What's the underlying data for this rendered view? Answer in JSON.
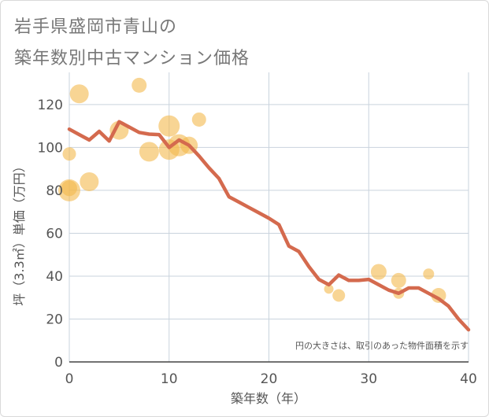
{
  "title_line1": "岩手県盛岡市青山の",
  "title_line2": "築年数別中古マンション価格",
  "chart_data": {
    "type": "scatter",
    "xlabel": "築年数（年）",
    "ylabel": "坪（3.3㎡）単価（万円）",
    "note": "円の大きさは、取引のあった物件面積を示す",
    "xlim": [
      0,
      40
    ],
    "ylim": [
      0,
      135
    ],
    "xticks": [
      0,
      10,
      20,
      30,
      40
    ],
    "yticks": [
      0,
      20,
      40,
      60,
      80,
      100,
      120
    ],
    "grid": true,
    "colors": {
      "bubble": "#f3b94d",
      "trend_line": "#d46a4e",
      "grid": "#c9d3dd",
      "axis_text": "#555555"
    },
    "series": [
      {
        "type": "scatter",
        "points": [
          {
            "x": 0,
            "y": 97,
            "size": 0.45
          },
          {
            "x": 0,
            "y": 80,
            "size": 1.0
          },
          {
            "x": 0,
            "y": 81,
            "size": 0.6
          },
          {
            "x": 1,
            "y": 125,
            "size": 0.8
          },
          {
            "x": 2,
            "y": 84,
            "size": 0.8
          },
          {
            "x": 5,
            "y": 108,
            "size": 0.8
          },
          {
            "x": 7,
            "y": 129,
            "size": 0.55
          },
          {
            "x": 8,
            "y": 98,
            "size": 0.85
          },
          {
            "x": 10,
            "y": 110,
            "size": 0.95
          },
          {
            "x": 10,
            "y": 99,
            "size": 0.9
          },
          {
            "x": 11,
            "y": 101,
            "size": 1.0
          },
          {
            "x": 12,
            "y": 101,
            "size": 0.7
          },
          {
            "x": 13,
            "y": 113,
            "size": 0.5
          },
          {
            "x": 26,
            "y": 34,
            "size": 0.2
          },
          {
            "x": 27,
            "y": 31,
            "size": 0.4
          },
          {
            "x": 31,
            "y": 42,
            "size": 0.6
          },
          {
            "x": 33,
            "y": 38,
            "size": 0.55
          },
          {
            "x": 33,
            "y": 32,
            "size": 0.3
          },
          {
            "x": 36,
            "y": 41,
            "size": 0.3
          },
          {
            "x": 37,
            "y": 31,
            "size": 0.55
          }
        ]
      },
      {
        "type": "line",
        "x": [
          0,
          1,
          2,
          3,
          4,
          5,
          6,
          7,
          8,
          9,
          10,
          11,
          12,
          13,
          14,
          15,
          16,
          17,
          18,
          19,
          20,
          21,
          22,
          23,
          24,
          25,
          26,
          27,
          28,
          29,
          30,
          31,
          32,
          33,
          34,
          35,
          36,
          37,
          38,
          39,
          40
        ],
        "y": [
          108.5,
          106,
          103.5,
          107.5,
          103,
          112,
          109.5,
          107,
          106.2,
          106,
          100,
          103.5,
          101,
          96,
          90.5,
          85.5,
          77,
          74.5,
          72,
          69.5,
          67,
          64,
          54,
          51.5,
          44.5,
          38.5,
          36,
          40.5,
          38,
          38,
          38.5,
          36,
          33.5,
          32,
          34.5,
          34.5,
          32,
          29.5,
          26,
          20,
          15
        ]
      }
    ]
  }
}
